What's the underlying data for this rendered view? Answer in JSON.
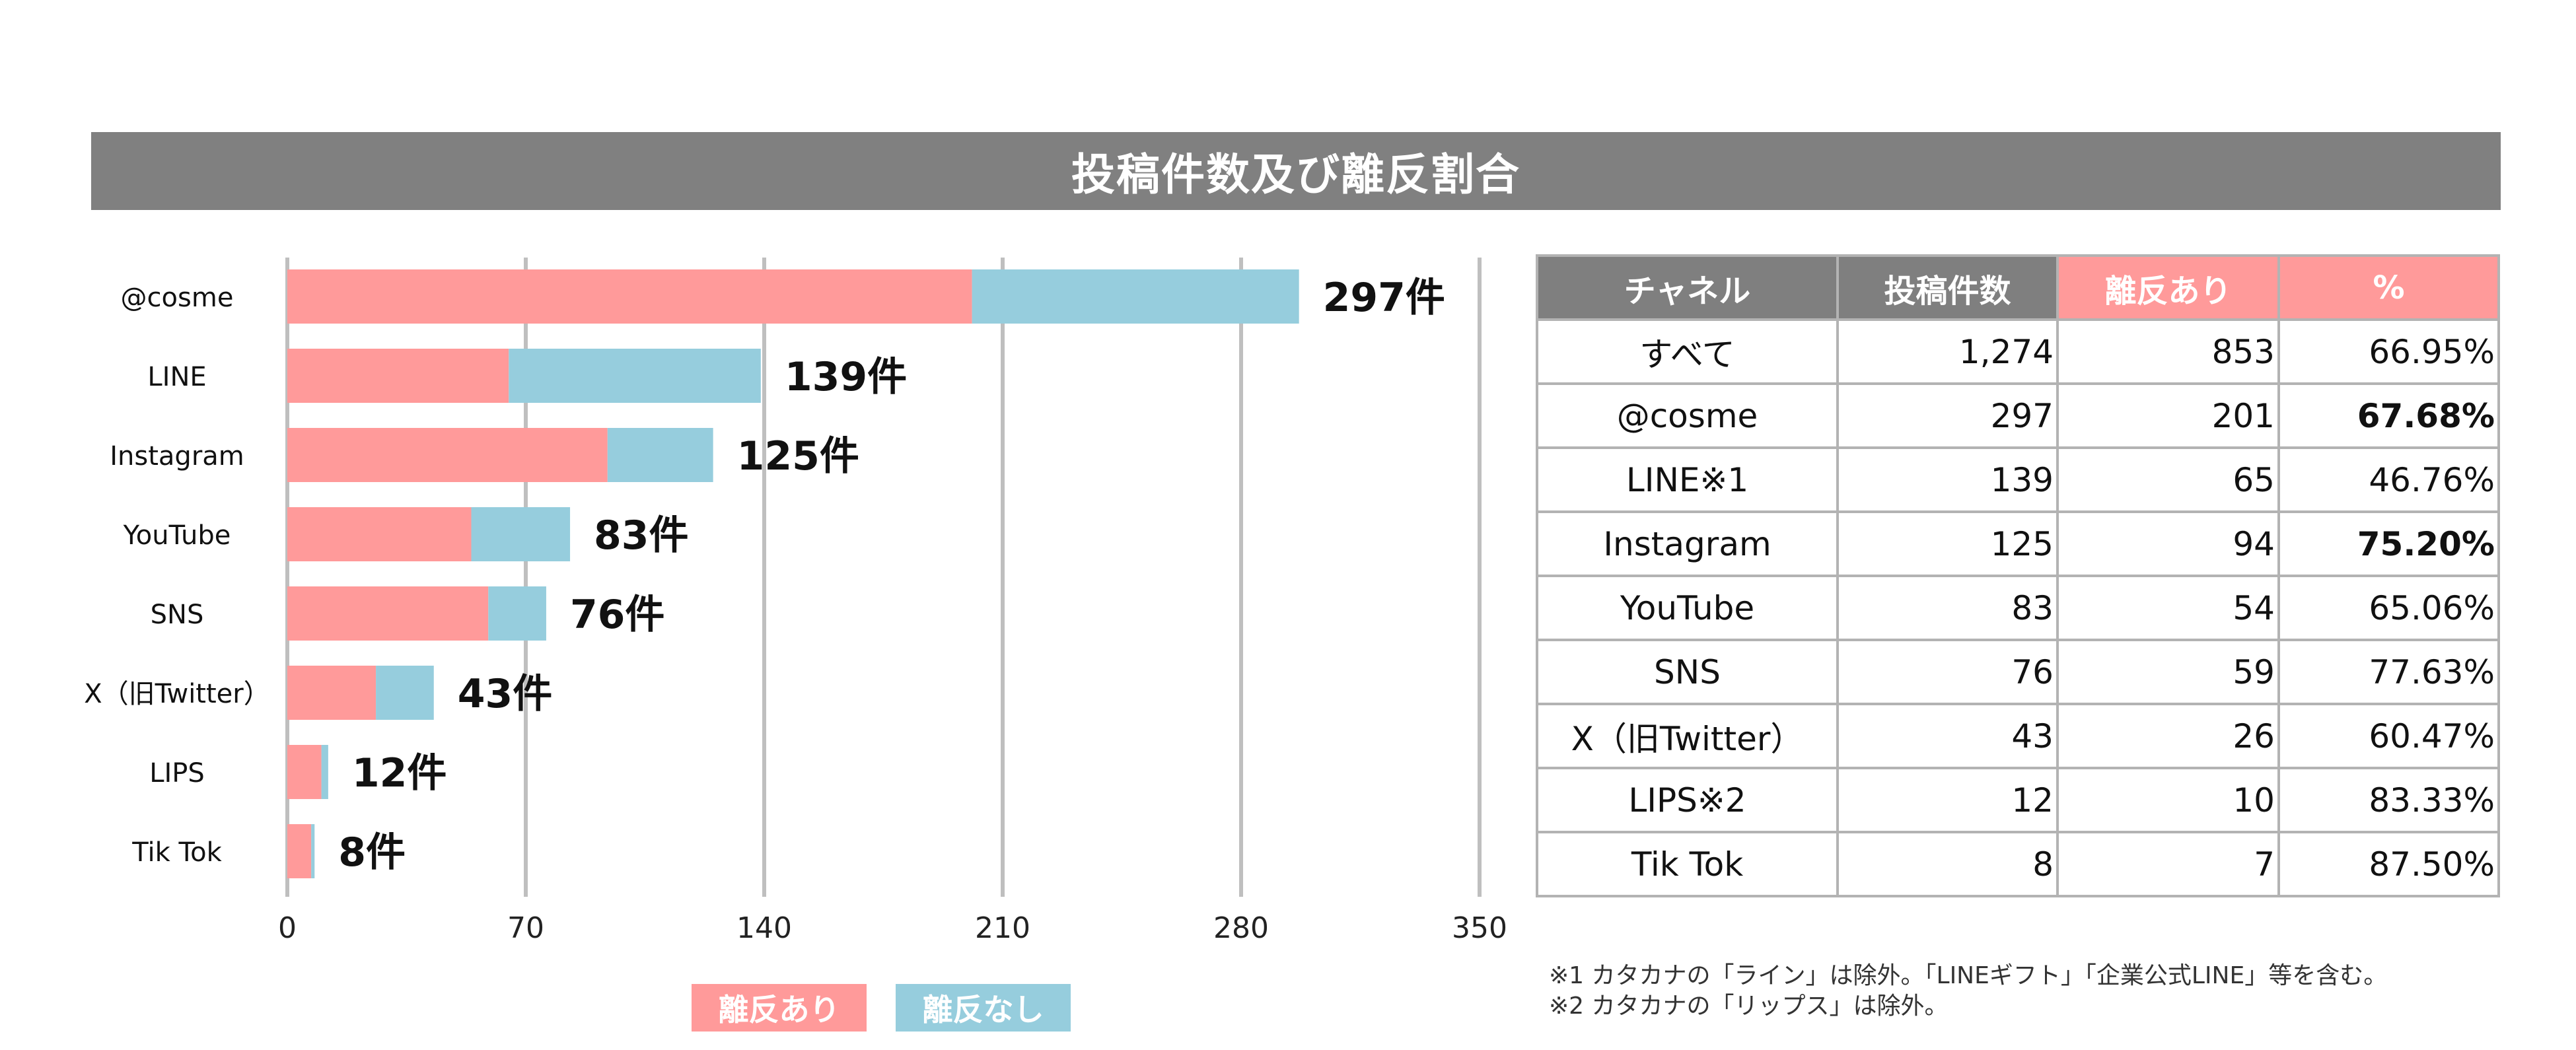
{
  "title": "投稿件数及び離反割合",
  "colors": {
    "title_bg": "#808080",
    "churn_yes": "#ff9a9a",
    "churn_no": "#96cddd",
    "grid": "#bfbfbf",
    "table_header_gray": "#7f7f7f",
    "table_header_pink": "#ff9a9a"
  },
  "chart_data": {
    "type": "bar",
    "orientation": "horizontal",
    "stacked": true,
    "categories": [
      "@cosme",
      "LINE",
      "Instagram",
      "YouTube",
      "SNS",
      "X（旧Twitter）",
      "LIPS",
      "Tik Tok"
    ],
    "series": [
      {
        "name": "離反あり",
        "values": [
          201,
          65,
          94,
          54,
          59,
          26,
          10,
          7
        ]
      },
      {
        "name": "離反なし",
        "values": [
          96,
          74,
          31,
          29,
          17,
          17,
          2,
          1
        ]
      }
    ],
    "total_labels": [
      "297件",
      "139件",
      "125件",
      "83件",
      "76件",
      "43件",
      "12件",
      "8件"
    ],
    "totals": [
      297,
      139,
      125,
      83,
      76,
      43,
      12,
      8
    ],
    "xlim": [
      0,
      350
    ],
    "xticks": [
      0,
      70,
      140,
      210,
      280,
      350
    ],
    "grid": true,
    "legend": "bottom-center"
  },
  "legend": {
    "churn_yes": "離反あり",
    "churn_no": "離反なし"
  },
  "table": {
    "headers": [
      "チャネル",
      "投稿件数",
      "離反あり",
      "%"
    ],
    "rows": [
      {
        "channel": "すべて",
        "posts": "1,274",
        "churn": "853",
        "pct": "66.95%",
        "bold": false
      },
      {
        "channel": "@cosme",
        "posts": "297",
        "churn": "201",
        "pct": "67.68%",
        "bold": true
      },
      {
        "channel": "LINE※1",
        "posts": "139",
        "churn": "65",
        "pct": "46.76%",
        "bold": false
      },
      {
        "channel": "Instagram",
        "posts": "125",
        "churn": "94",
        "pct": "75.20%",
        "bold": true
      },
      {
        "channel": "YouTube",
        "posts": "83",
        "churn": "54",
        "pct": "65.06%",
        "bold": false
      },
      {
        "channel": "SNS",
        "posts": "76",
        "churn": "59",
        "pct": "77.63%",
        "bold": false
      },
      {
        "channel": "X（旧Twitter）",
        "posts": "43",
        "churn": "26",
        "pct": "60.47%",
        "bold": false
      },
      {
        "channel": "LIPS※2",
        "posts": "12",
        "churn": "10",
        "pct": "83.33%",
        "bold": false
      },
      {
        "channel": "Tik Tok",
        "posts": "8",
        "churn": "7",
        "pct": "87.50%",
        "bold": false
      }
    ]
  },
  "notes": [
    "※1 カタカナの「ライン」は除外。「LINEギフト」「企業公式LINE」等を含む。",
    "※2 カタカナの「リップス」は除外。"
  ]
}
